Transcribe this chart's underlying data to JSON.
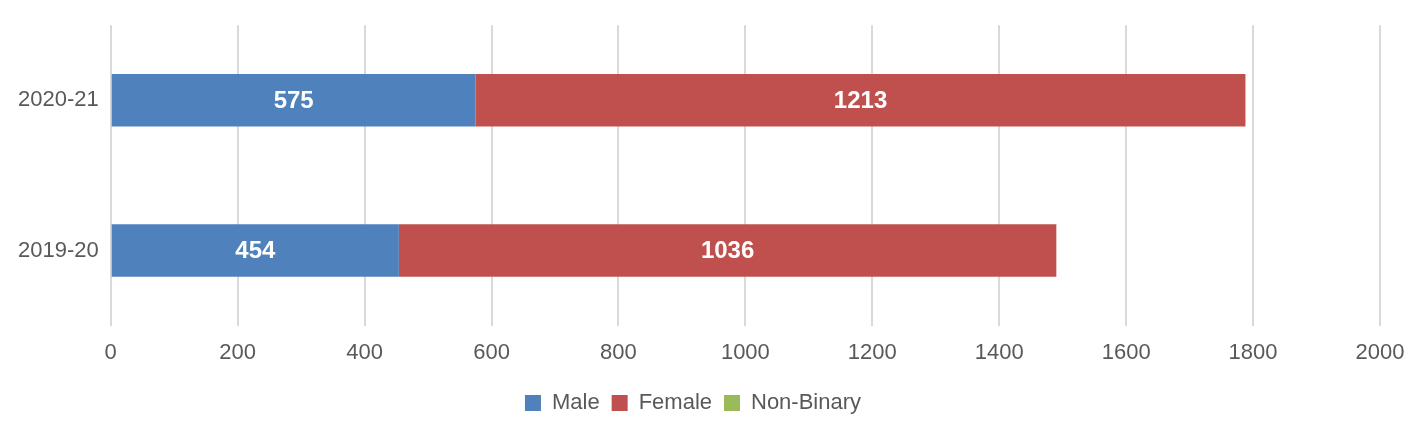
{
  "chart_data": {
    "type": "bar",
    "orientation": "horizontal",
    "stacked": true,
    "categories": [
      "2020-21",
      "2019-20"
    ],
    "series": [
      {
        "name": "Male",
        "color": "#4f81bd",
        "values": [
          575,
          454
        ],
        "value_labels": [
          "575",
          "454"
        ]
      },
      {
        "name": "Female",
        "color": "#c0504d",
        "values": [
          1213,
          1036
        ],
        "value_labels": [
          "1213",
          "1036"
        ]
      },
      {
        "name": "Non-Binary",
        "color": "#9bbb59",
        "values": [
          0,
          0
        ],
        "value_labels": [
          null,
          null
        ]
      }
    ],
    "xlim": [
      0,
      2000
    ],
    "xticks": [
      0,
      200,
      400,
      600,
      800,
      1000,
      1200,
      1400,
      1600,
      1800,
      2000
    ],
    "grid": "x",
    "legend": "bottom"
  }
}
